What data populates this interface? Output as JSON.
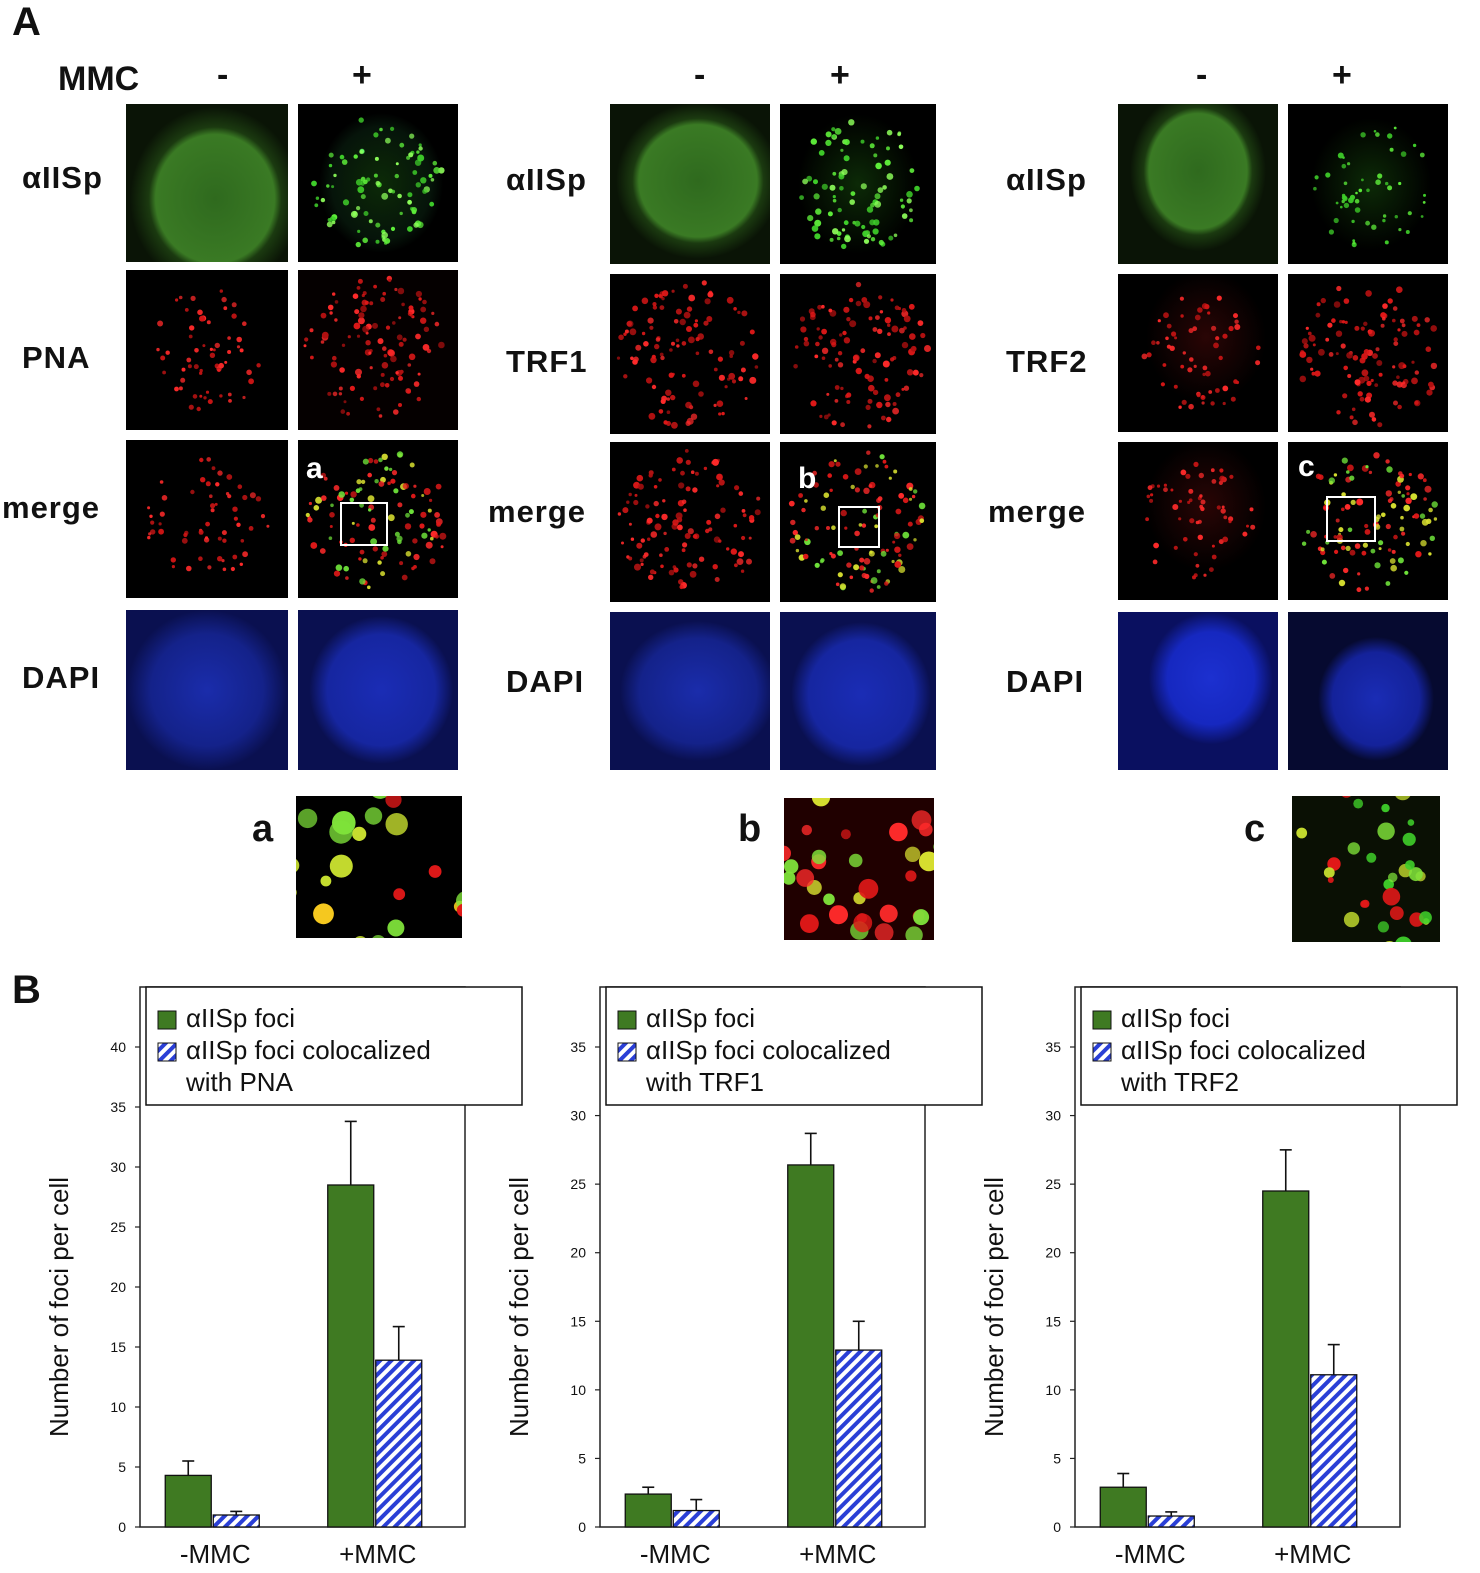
{
  "panel_labels": {
    "a": "A",
    "b": "B"
  },
  "mmc_header": {
    "label": "MMC",
    "minus": "-",
    "plus": "+"
  },
  "row_labels": {
    "col1": [
      "αIISp",
      "PNA",
      "merge",
      "DAPI"
    ],
    "col2": [
      "αIISp",
      "TRF1",
      "merge",
      "DAPI"
    ],
    "col3": [
      "αIISp",
      "TRF2",
      "merge",
      "DAPI"
    ]
  },
  "inset_letters": [
    "a",
    "b",
    "c"
  ],
  "zoom_letters": [
    "a",
    "b",
    "c"
  ],
  "colors": {
    "green_bar": "#3f7a22",
    "hatch": "#2a3fd6",
    "green_signal": "#3fcf2a",
    "red_signal": "#e01818",
    "dapi_blue": "#1626b0"
  },
  "chart_data": [
    {
      "type": "bar",
      "categories": [
        "-MMC",
        "+MMC"
      ],
      "ylabel": "Number of foci per cell",
      "ylim": [
        0,
        40
      ],
      "yticks": [
        0,
        5,
        10,
        15,
        20,
        25,
        30,
        35,
        40
      ],
      "series": [
        {
          "name": "αIISp foci",
          "values": [
            4.3,
            28.5
          ],
          "errors": [
            1.2,
            5.3
          ]
        },
        {
          "name": "αIISp foci colocalized with PNA",
          "values": [
            1.0,
            13.9
          ],
          "errors": [
            0.3,
            2.8
          ]
        }
      ],
      "legend_lines": [
        "αIISp foci",
        "αIISp foci colocalized",
        "with PNA"
      ]
    },
    {
      "type": "bar",
      "categories": [
        "-MMC",
        "+MMC"
      ],
      "ylabel": "Number of foci per cell",
      "ylim": [
        0,
        35
      ],
      "yticks": [
        0,
        5,
        10,
        15,
        20,
        25,
        30,
        35
      ],
      "series": [
        {
          "name": "αIISp foci",
          "values": [
            2.4,
            26.4
          ],
          "errors": [
            0.5,
            2.3
          ]
        },
        {
          "name": "αIISp foci colocalized with TRF1",
          "values": [
            1.2,
            12.9
          ],
          "errors": [
            0.8,
            2.1
          ]
        }
      ],
      "legend_lines": [
        "αIISp foci",
        "αIISp foci colocalized",
        "with TRF1"
      ]
    },
    {
      "type": "bar",
      "categories": [
        "-MMC",
        "+MMC"
      ],
      "ylabel": "Number of foci per cell",
      "ylim": [
        0,
        35
      ],
      "yticks": [
        0,
        5,
        10,
        15,
        20,
        25,
        30,
        35
      ],
      "series": [
        {
          "name": "αIISp foci",
          "values": [
            2.9,
            24.5
          ],
          "errors": [
            1.0,
            3.0
          ]
        },
        {
          "name": "αIISp foci colocalized with TRF2",
          "values": [
            0.8,
            11.1
          ],
          "errors": [
            0.3,
            2.2
          ]
        }
      ],
      "legend_lines": [
        "αIISp foci",
        "αIISp foci colocalized",
        "with TRF2"
      ]
    }
  ]
}
